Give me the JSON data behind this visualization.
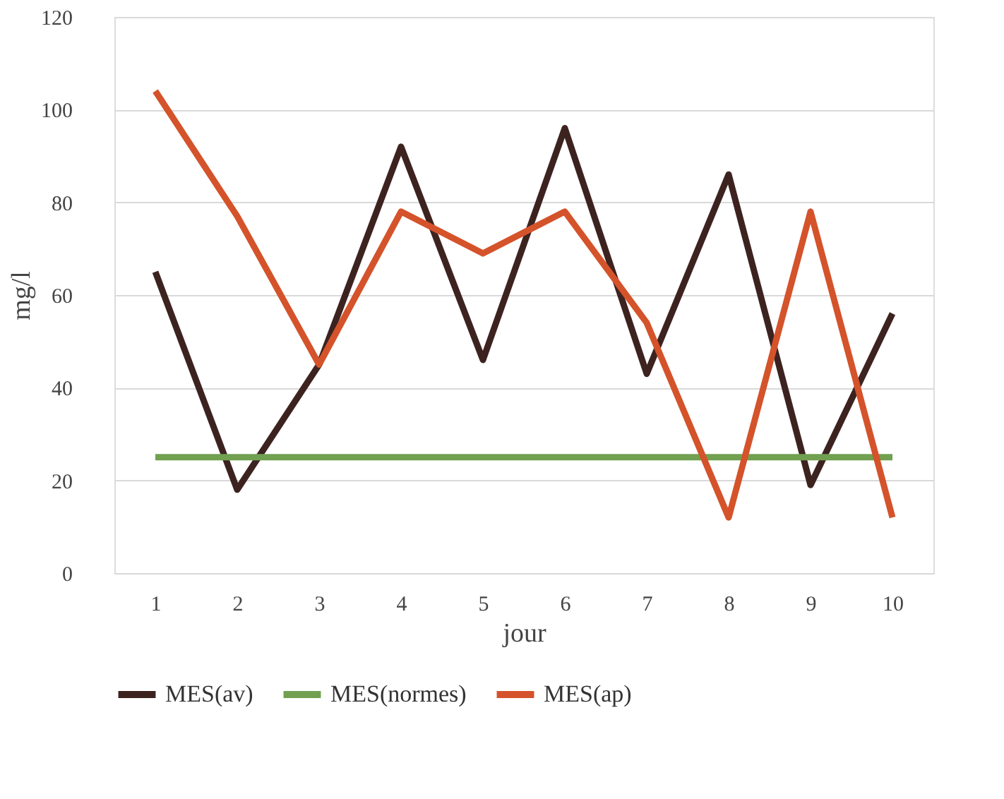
{
  "chart_data": {
    "type": "line",
    "xlabel": "jour",
    "ylabel": "mg/l",
    "categories": [
      "1",
      "2",
      "3",
      "4",
      "5",
      "6",
      "7",
      "8",
      "9",
      "10"
    ],
    "ylim": [
      0,
      120
    ],
    "yticks": [
      0,
      20,
      40,
      60,
      80,
      100,
      120
    ],
    "grid": "y",
    "legend": "bottom",
    "marker": "none",
    "line_style": "solid",
    "series": [
      {
        "name": "MES(av)",
        "color": "#3d2320",
        "values": [
          65,
          18,
          45,
          92,
          46,
          96,
          43,
          86,
          19,
          56
        ]
      },
      {
        "name": "MES(normes)",
        "color": "#70a050",
        "values": [
          25,
          25,
          25,
          25,
          25,
          25,
          25,
          25,
          25,
          25
        ]
      },
      {
        "name": "MES(ap)",
        "color": "#d4532b",
        "values": [
          104,
          77,
          45,
          78,
          69,
          78,
          54,
          12,
          78,
          12
        ]
      }
    ]
  }
}
